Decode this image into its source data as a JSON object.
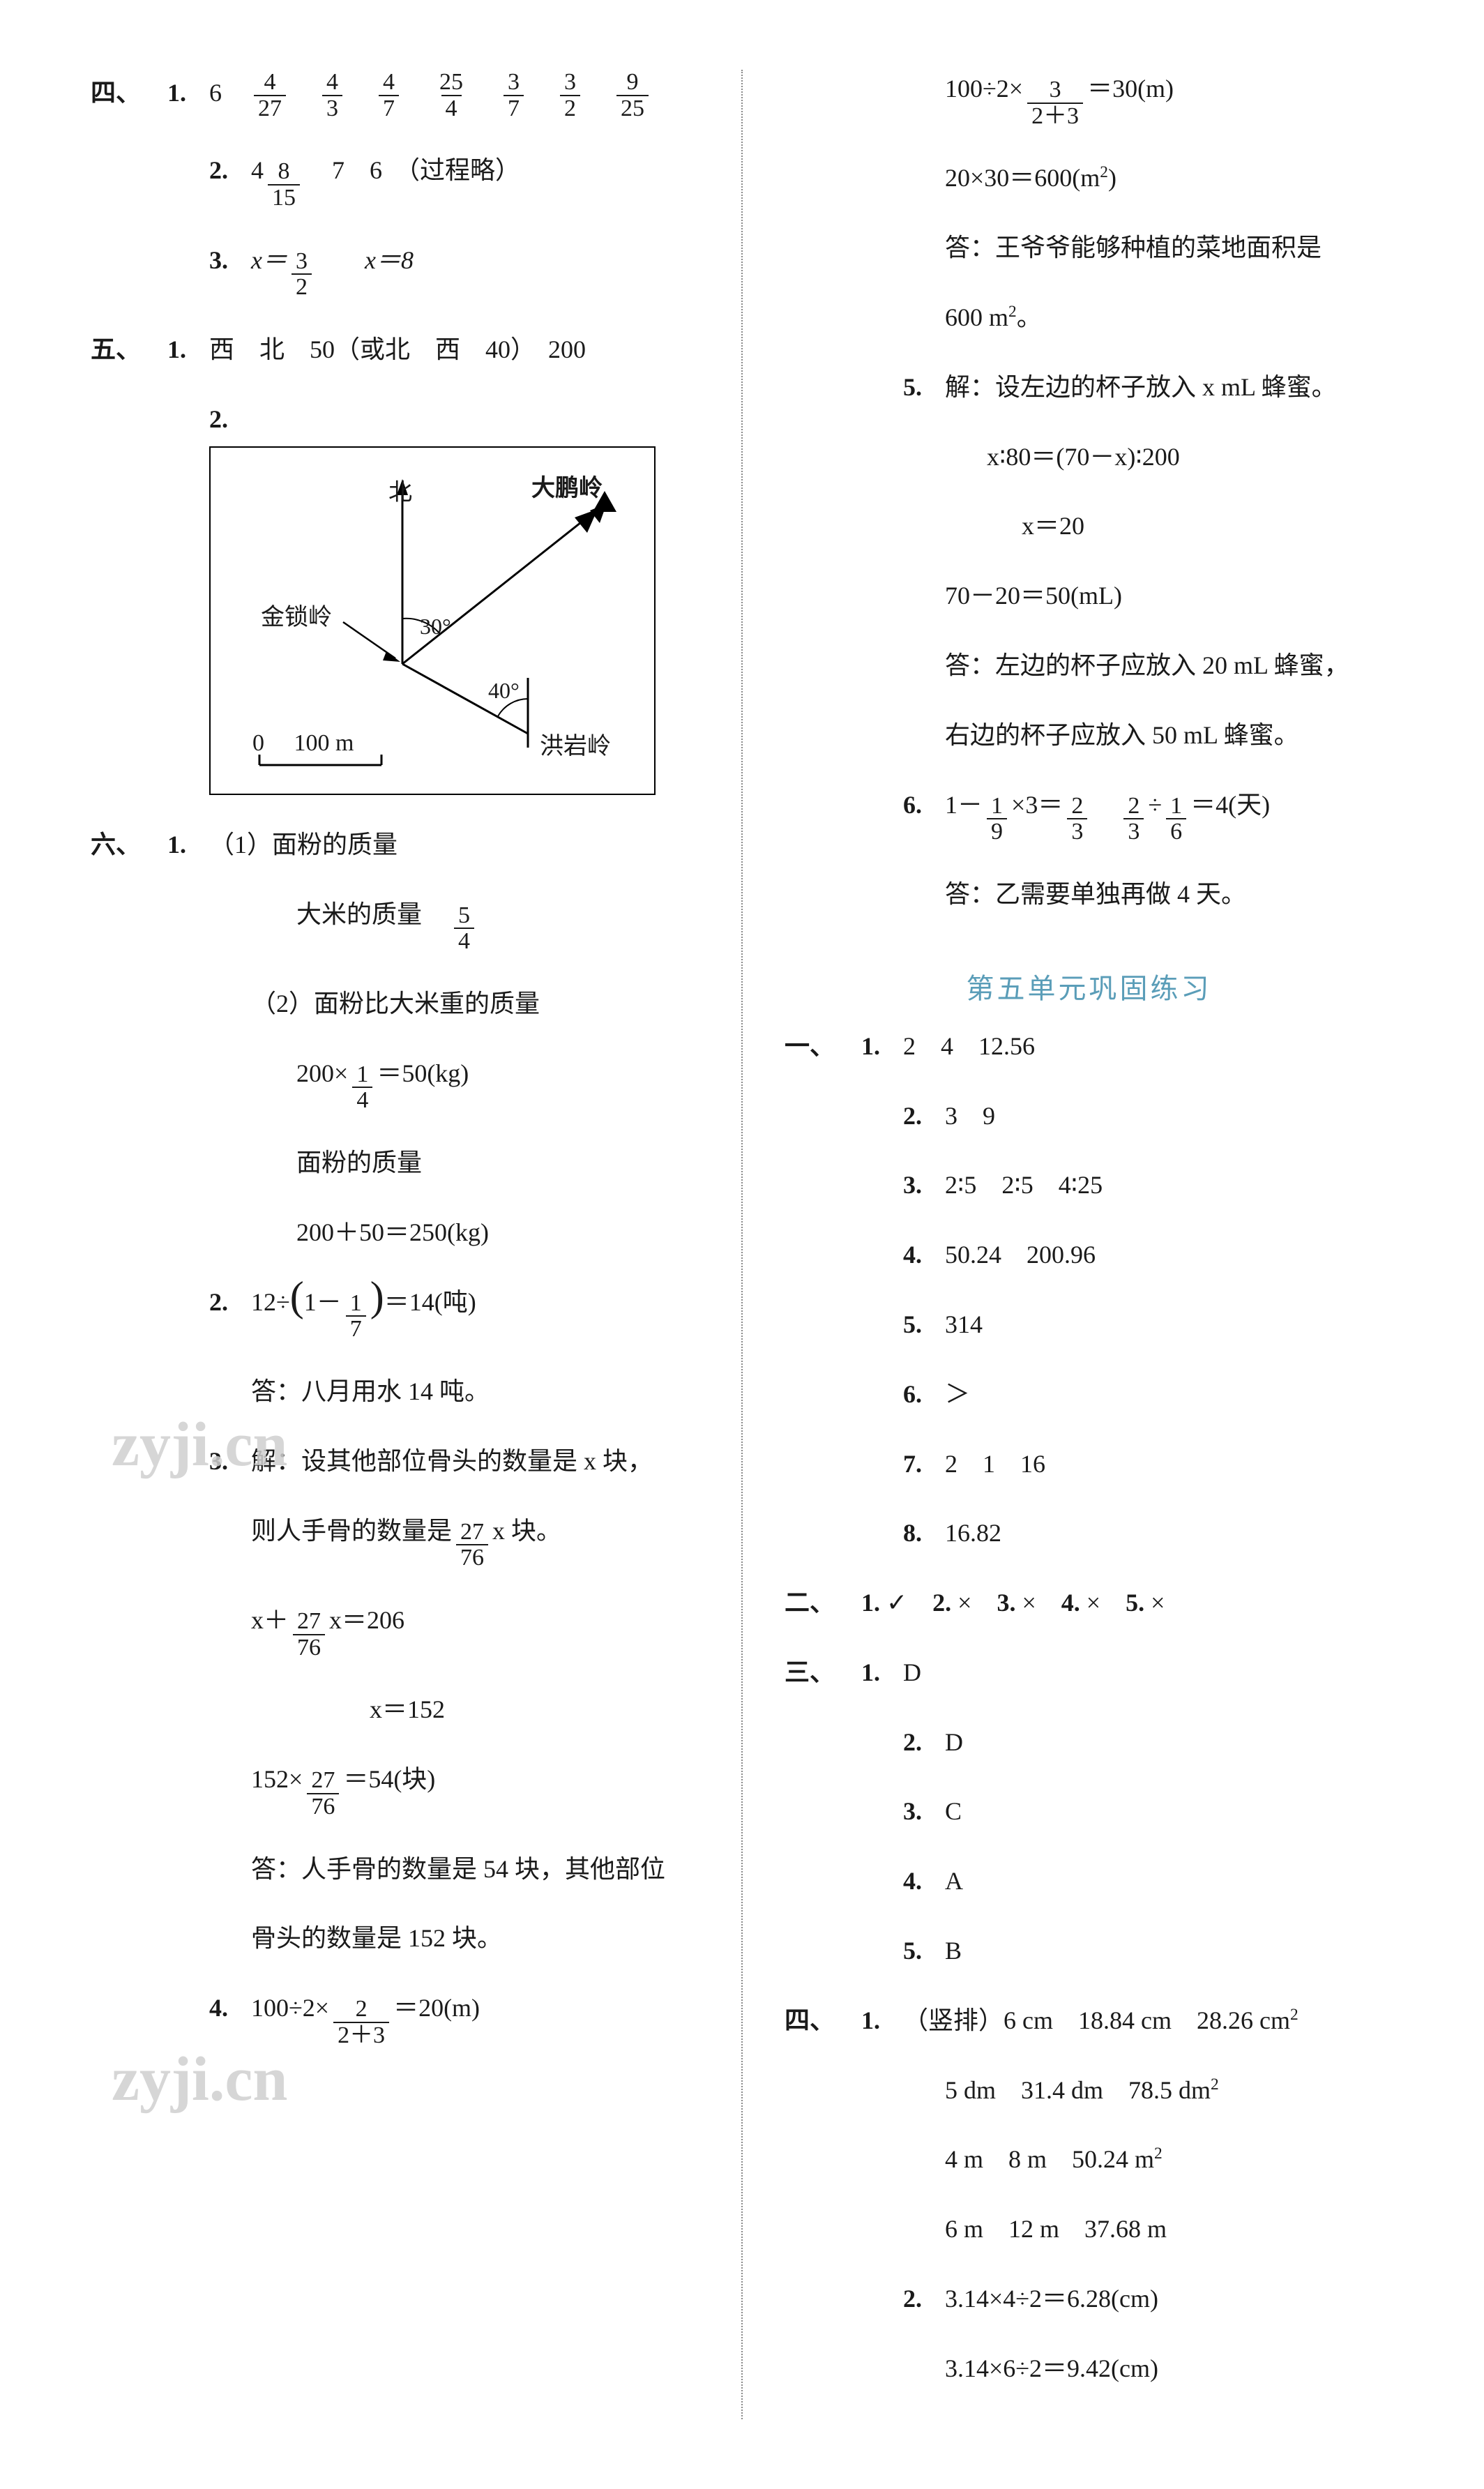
{
  "left": {
    "sec4": {
      "label": "四、",
      "q1": {
        "num": "1.",
        "lead": "6",
        "fracs": [
          {
            "n": "4",
            "d": "27"
          },
          {
            "n": "4",
            "d": "3"
          },
          {
            "n": "4",
            "d": "7"
          },
          {
            "n": "25",
            "d": "4"
          },
          {
            "n": "3",
            "d": "7"
          },
          {
            "n": "3",
            "d": "2"
          },
          {
            "n": "9",
            "d": "25"
          }
        ]
      },
      "q2": {
        "num": "2.",
        "lead": "4",
        "frac": {
          "n": "8",
          "d": "15"
        },
        "rest": "7　6　（过程略）"
      },
      "q3": {
        "num": "3.",
        "eq_lead": "x＝",
        "frac": {
          "n": "3",
          "d": "2"
        },
        "eq2": "x＝8"
      }
    },
    "sec5": {
      "label": "五、",
      "q1": {
        "num": "1.",
        "text": "西　北　50（或北　西　40）　200"
      },
      "q2": {
        "num": "2."
      },
      "diagram": {
        "north": "北",
        "peak": "大鹏岭",
        "jinsuo": "金锁岭",
        "hongyan": "洪岩岭",
        "angle1": "30°",
        "angle2": "40°",
        "scale": "0　 100 m",
        "color": "#000000"
      }
    },
    "sec6": {
      "label": "六、",
      "q1": {
        "num": "1.",
        "l1": "（1）面粉的质量",
        "l2a": "大米的质量",
        "l2f": {
          "n": "5",
          "d": "4"
        },
        "l3": "（2）面粉比大米重的质量",
        "l4a": "200×",
        "l4f": {
          "n": "1",
          "d": "4"
        },
        "l4b": "＝50(kg)",
        "l5": "面粉的质量",
        "l6": "200＋50＝250(kg)"
      },
      "q2": {
        "num": "2.",
        "a": "12÷",
        "paren_l": "(",
        "inner_a": "1－",
        "frac": {
          "n": "1",
          "d": "7"
        },
        "paren_r": ")",
        "b": "＝14(吨)",
        "ans": "答：八月用水 14 吨。"
      },
      "q3": {
        "num": "3.",
        "l1": "解：设其他部位骨头的数量是 x 块，",
        "l2a": "则人手骨的数量是",
        "l2f": {
          "n": "27",
          "d": "76"
        },
        "l2b": "x 块。",
        "l3a": "x＋",
        "l3f": {
          "n": "27",
          "d": "76"
        },
        "l3b": "x＝206",
        "l4": "x＝152",
        "l5a": "152×",
        "l5f": {
          "n": "27",
          "d": "76"
        },
        "l5b": "＝54(块)",
        "ans1": "答：人手骨的数量是 54 块，其他部位",
        "ans2": "骨头的数量是 152 块。"
      },
      "q4": {
        "num": "4.",
        "a": "100÷2×",
        "frac": {
          "n": "2",
          "d": "2＋3"
        },
        "b": "＝20(m)"
      }
    },
    "watermark1": "zyji.cn",
    "watermark2": "zyji.cn"
  },
  "right": {
    "cont": {
      "l1a": "100÷2×",
      "l1f": {
        "n": "3",
        "d": "2＋3"
      },
      "l1b": "＝30(m)",
      "l2": "20×30＝600(m²)",
      "l3": "答：王爷爷能够种植的菜地面积是",
      "l4": "600 m²。"
    },
    "q5": {
      "num": "5.",
      "l1": "解：设左边的杯子放入 x mL 蜂蜜。",
      "l2": "x∶80＝(70－x)∶200",
      "l3": "x＝20",
      "l4": "70－20＝50(mL)",
      "ans1": "答：左边的杯子应放入 20 mL 蜂蜜，",
      "ans2": "右边的杯子应放入 50 mL 蜂蜜。"
    },
    "q6": {
      "num": "6.",
      "a": "1－",
      "f1": {
        "n": "1",
        "d": "9"
      },
      "b": "×3＝",
      "f2": {
        "n": "2",
        "d": "3"
      },
      "c": "",
      "f3": {
        "n": "2",
        "d": "3"
      },
      "d": "÷",
      "f4": {
        "n": "1",
        "d": "6"
      },
      "e": "＝4(天)",
      "ans": "答：乙需要单独再做 4 天。"
    },
    "title": "第五单元巩固练习",
    "s1": {
      "label": "一、",
      "items": [
        {
          "n": "1.",
          "t": "2　4　12.56"
        },
        {
          "n": "2.",
          "t": "3　9"
        },
        {
          "n": "3.",
          "t": "2∶5　2∶5　4∶25"
        },
        {
          "n": "4.",
          "t": "50.24　200.96"
        },
        {
          "n": "5.",
          "t": "314"
        },
        {
          "n": "6.",
          "t": "＞"
        },
        {
          "n": "7.",
          "t": "2　1　16"
        },
        {
          "n": "8.",
          "t": "16.82"
        }
      ]
    },
    "s2": {
      "label": "二、",
      "t": "1. ✓　2. ×　3. ×　4. ×　5. ×"
    },
    "s3": {
      "label": "三、",
      "items": [
        {
          "n": "1.",
          "t": "D"
        },
        {
          "n": "2.",
          "t": "D"
        },
        {
          "n": "3.",
          "t": "C"
        },
        {
          "n": "4.",
          "t": "A"
        },
        {
          "n": "5.",
          "t": "B"
        }
      ]
    },
    "s4": {
      "label": "四、",
      "q1": {
        "n": "1.",
        "lead": "（竖排）6 cm　18.84 cm　28.26 cm²",
        "l2": "5 dm　31.4 dm　78.5 dm²",
        "l3": "4 m　8 m　50.24 m²",
        "l4": "6 m　12 m　37.68 m"
      },
      "q2": {
        "n": "2.",
        "l1": "3.14×4÷2＝6.28(cm)",
        "l2": "3.14×6÷2＝9.42(cm)"
      }
    }
  },
  "colors": {
    "text": "#1a1a1a",
    "titleColor": "#5a9db8",
    "divider": "#888888"
  }
}
